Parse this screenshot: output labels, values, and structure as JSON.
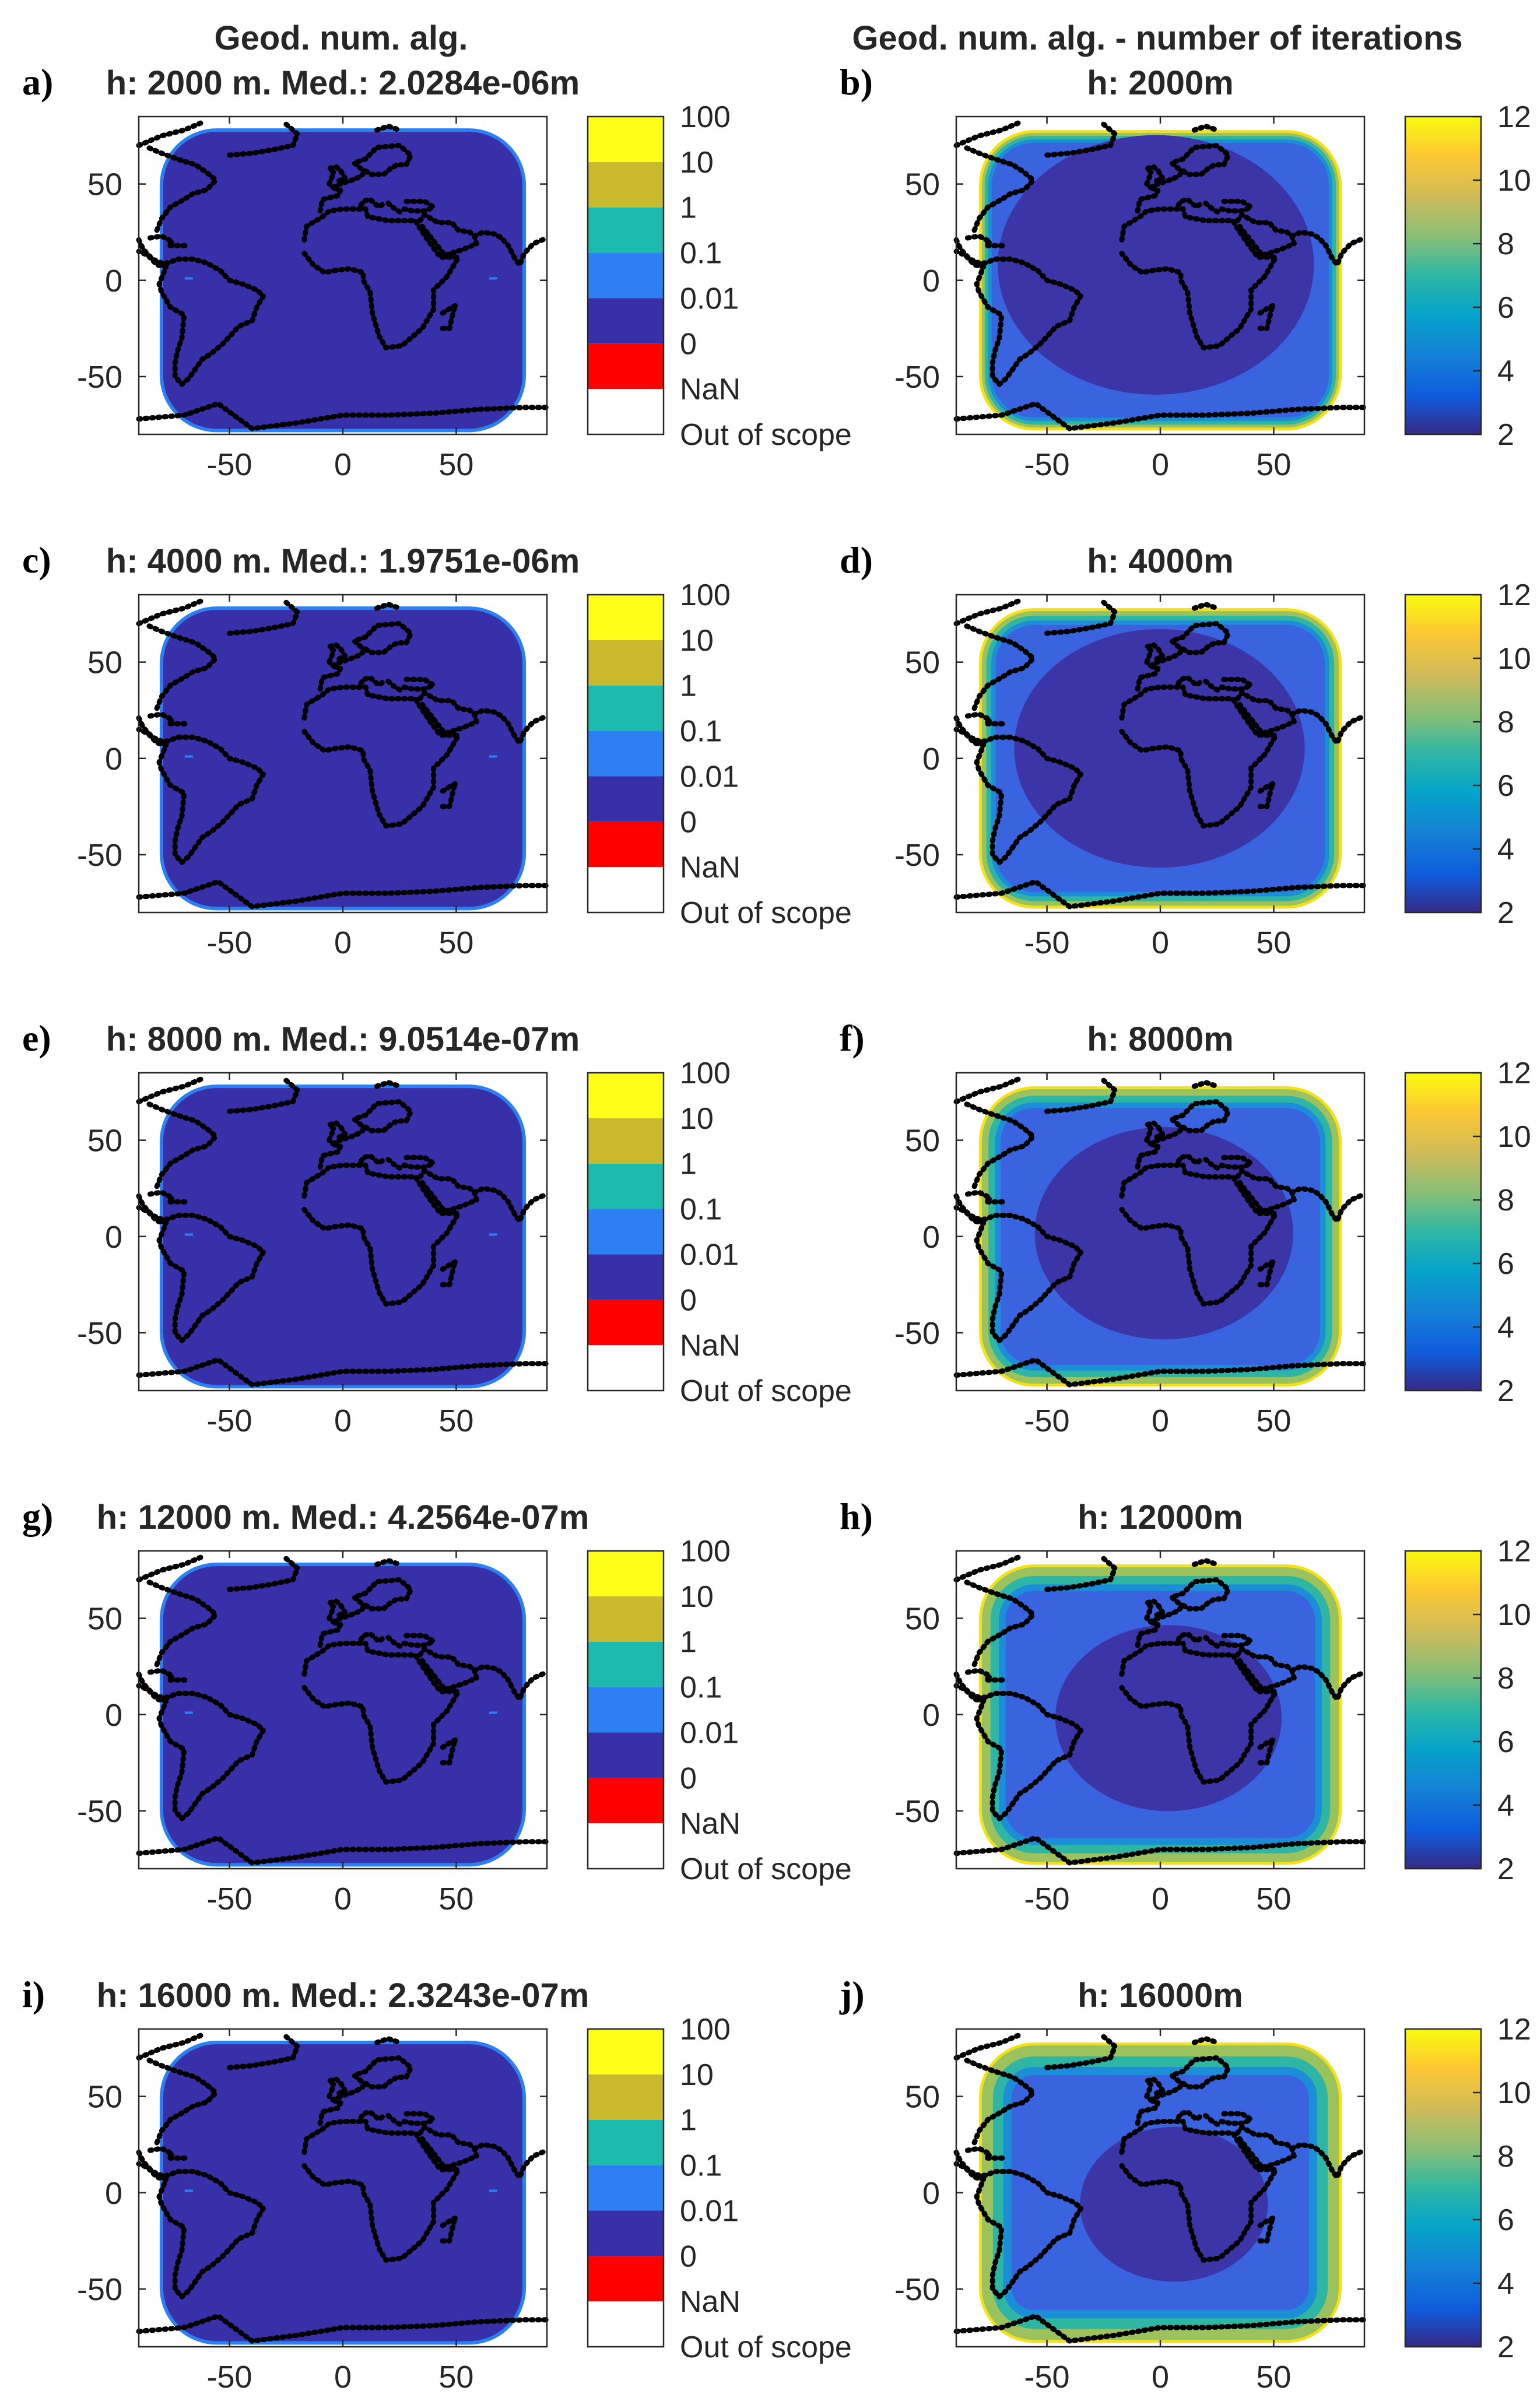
{
  "column_titles": [
    "Geod. num. alg.",
    "Geod. num. alg. - number of iterations"
  ],
  "colors": {
    "error_bins": [
      "#FFFF1A",
      "#C9B92C",
      "#1DBAAE",
      "#2C80F2",
      "#3830A8",
      "#FF0000",
      "#FFFFFF"
    ],
    "parula": [
      "#352A87",
      "#0F5CDD",
      "#1481D6",
      "#06A4CA",
      "#2EB7A4",
      "#87BF77",
      "#D1BB59",
      "#FEC832",
      "#F9FB0E"
    ],
    "coast": "#000000",
    "ocean_bg": "#FFFFFF"
  },
  "chart_data": [
    {
      "panel": "a",
      "type": "heatmap",
      "label": "a)",
      "title": "h: 2000 m. Med.: 2.0284e-06m",
      "height_m": 2000,
      "median_error_m": 2.0284e-06,
      "xticks": [
        -50,
        0,
        50
      ],
      "yticks": [
        50,
        0,
        -50
      ],
      "xlim": [
        -90,
        90
      ],
      "ylim": [
        -80,
        85
      ],
      "colorbar": {
        "type": "categorical",
        "labels": [
          "100",
          "10",
          "1",
          "0.1",
          "0.01",
          "0",
          "NaN",
          "Out of scope"
        ]
      }
    },
    {
      "panel": "b",
      "type": "heatmap",
      "label": "b)",
      "title": "h: 2000m",
      "height_m": 2000,
      "xticks": [
        -50,
        0,
        50
      ],
      "yticks": [
        50,
        0,
        -50
      ],
      "xlim": [
        -90,
        90
      ],
      "ylim": [
        -80,
        85
      ],
      "colorbar": {
        "type": "continuous",
        "ticks": [
          "12",
          "10",
          "8",
          "6",
          "4",
          "2"
        ],
        "range": [
          2,
          12
        ]
      }
    },
    {
      "panel": "c",
      "type": "heatmap",
      "label": "c)",
      "title": "h: 4000 m. Med.: 1.9751e-06m",
      "height_m": 4000,
      "median_error_m": 1.9751e-06,
      "xticks": [
        -50,
        0,
        50
      ],
      "yticks": [
        50,
        0,
        -50
      ],
      "xlim": [
        -90,
        90
      ],
      "ylim": [
        -80,
        85
      ],
      "colorbar": {
        "type": "categorical",
        "labels": [
          "100",
          "10",
          "1",
          "0.1",
          "0.01",
          "0",
          "NaN",
          "Out of scope"
        ]
      }
    },
    {
      "panel": "d",
      "type": "heatmap",
      "label": "d)",
      "title": "h: 4000m",
      "height_m": 4000,
      "xticks": [
        -50,
        0,
        50
      ],
      "yticks": [
        50,
        0,
        -50
      ],
      "xlim": [
        -90,
        90
      ],
      "ylim": [
        -80,
        85
      ],
      "colorbar": {
        "type": "continuous",
        "ticks": [
          "12",
          "10",
          "8",
          "6",
          "4",
          "2"
        ],
        "range": [
          2,
          12
        ]
      }
    },
    {
      "panel": "e",
      "type": "heatmap",
      "label": "e)",
      "title": "h: 8000 m. Med.: 9.0514e-07m",
      "height_m": 8000,
      "median_error_m": 9.0514e-07,
      "xticks": [
        -50,
        0,
        50
      ],
      "yticks": [
        50,
        0,
        -50
      ],
      "xlim": [
        -90,
        90
      ],
      "ylim": [
        -80,
        85
      ],
      "colorbar": {
        "type": "categorical",
        "labels": [
          "100",
          "10",
          "1",
          "0.1",
          "0.01",
          "0",
          "NaN",
          "Out of scope"
        ]
      }
    },
    {
      "panel": "f",
      "type": "heatmap",
      "label": "f)",
      "title": "h: 8000m",
      "height_m": 8000,
      "xticks": [
        -50,
        0,
        50
      ],
      "yticks": [
        50,
        0,
        -50
      ],
      "xlim": [
        -90,
        90
      ],
      "ylim": [
        -80,
        85
      ],
      "colorbar": {
        "type": "continuous",
        "ticks": [
          "12",
          "10",
          "8",
          "6",
          "4",
          "2"
        ],
        "range": [
          2,
          12
        ]
      }
    },
    {
      "panel": "g",
      "type": "heatmap",
      "label": "g)",
      "title": "h: 12000 m. Med.: 4.2564e-07m",
      "height_m": 12000,
      "median_error_m": 4.2564e-07,
      "xticks": [
        -50,
        0,
        50
      ],
      "yticks": [
        50,
        0,
        -50
      ],
      "xlim": [
        -90,
        90
      ],
      "ylim": [
        -80,
        85
      ],
      "colorbar": {
        "type": "categorical",
        "labels": [
          "100",
          "10",
          "1",
          "0.1",
          "0.01",
          "0",
          "NaN",
          "Out of scope"
        ]
      }
    },
    {
      "panel": "h",
      "type": "heatmap",
      "label": "h)",
      "title": "h: 12000m",
      "height_m": 12000,
      "xticks": [
        -50,
        0,
        50
      ],
      "yticks": [
        50,
        0,
        -50
      ],
      "xlim": [
        -90,
        90
      ],
      "ylim": [
        -80,
        85
      ],
      "colorbar": {
        "type": "continuous",
        "ticks": [
          "12",
          "10",
          "8",
          "6",
          "4",
          "2"
        ],
        "range": [
          2,
          12
        ]
      }
    },
    {
      "panel": "i",
      "type": "heatmap",
      "label": "i)",
      "title": "h: 16000 m. Med.: 2.3243e-07m",
      "height_m": 16000,
      "median_error_m": 2.3243e-07,
      "xticks": [
        -50,
        0,
        50
      ],
      "yticks": [
        50,
        0,
        -50
      ],
      "xlim": [
        -90,
        90
      ],
      "ylim": [
        -80,
        85
      ],
      "colorbar": {
        "type": "categorical",
        "labels": [
          "100",
          "10",
          "1",
          "0.1",
          "0.01",
          "0",
          "NaN",
          "Out of scope"
        ]
      }
    },
    {
      "panel": "j",
      "type": "heatmap",
      "label": "j)",
      "title": "h: 16000m",
      "height_m": 16000,
      "xticks": [
        -50,
        0,
        50
      ],
      "yticks": [
        50,
        0,
        -50
      ],
      "xlim": [
        -90,
        90
      ],
      "ylim": [
        -80,
        85
      ],
      "colorbar": {
        "type": "continuous",
        "ticks": [
          "12",
          "10",
          "8",
          "6",
          "4",
          "2"
        ],
        "range": [
          2,
          12
        ]
      }
    }
  ]
}
